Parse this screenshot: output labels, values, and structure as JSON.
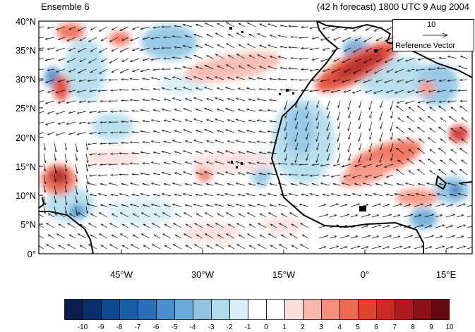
{
  "header": {
    "left": "Ensemble 6",
    "right": "(42 h forecast) 1800 UTC 9 Aug 2004"
  },
  "map": {
    "lat_labels": [
      "40°N",
      "35°N",
      "30°N",
      "25°N",
      "20°N",
      "15°N",
      "10°N",
      "5°N",
      "0°"
    ],
    "lon_labels": [
      "45°W",
      "30°W",
      "15°W",
      "0°",
      "15°E"
    ],
    "extent": {
      "lon_min": -57,
      "lon_max": 19,
      "lat_min": 0,
      "lat_max": 40
    }
  },
  "reference_vector": {
    "value": "10",
    "label": "Reference Vector"
  },
  "colorbar": {
    "labels": [
      "-10",
      "-9",
      "-8",
      "-7",
      "-6",
      "-5",
      "-4",
      "-3",
      "-2",
      "-1",
      "0",
      "1",
      "2",
      "3",
      "4",
      "5",
      "6",
      "7",
      "8",
      "9",
      "10"
    ],
    "colors": [
      "#0a1f4d",
      "#08306b",
      "#0e4a8e",
      "#1a5ea8",
      "#2b6fb6",
      "#4a8fcb",
      "#6aa9d6",
      "#8ec4e2",
      "#b2dcec",
      "#d8eef8",
      "#ffffff",
      "#ffffff",
      "#fcdedc",
      "#f9b8ae",
      "#f48f7e",
      "#ee6a52",
      "#e2432f",
      "#cc2a25",
      "#b01a1f",
      "#8c1016",
      "#600a0f"
    ]
  }
}
